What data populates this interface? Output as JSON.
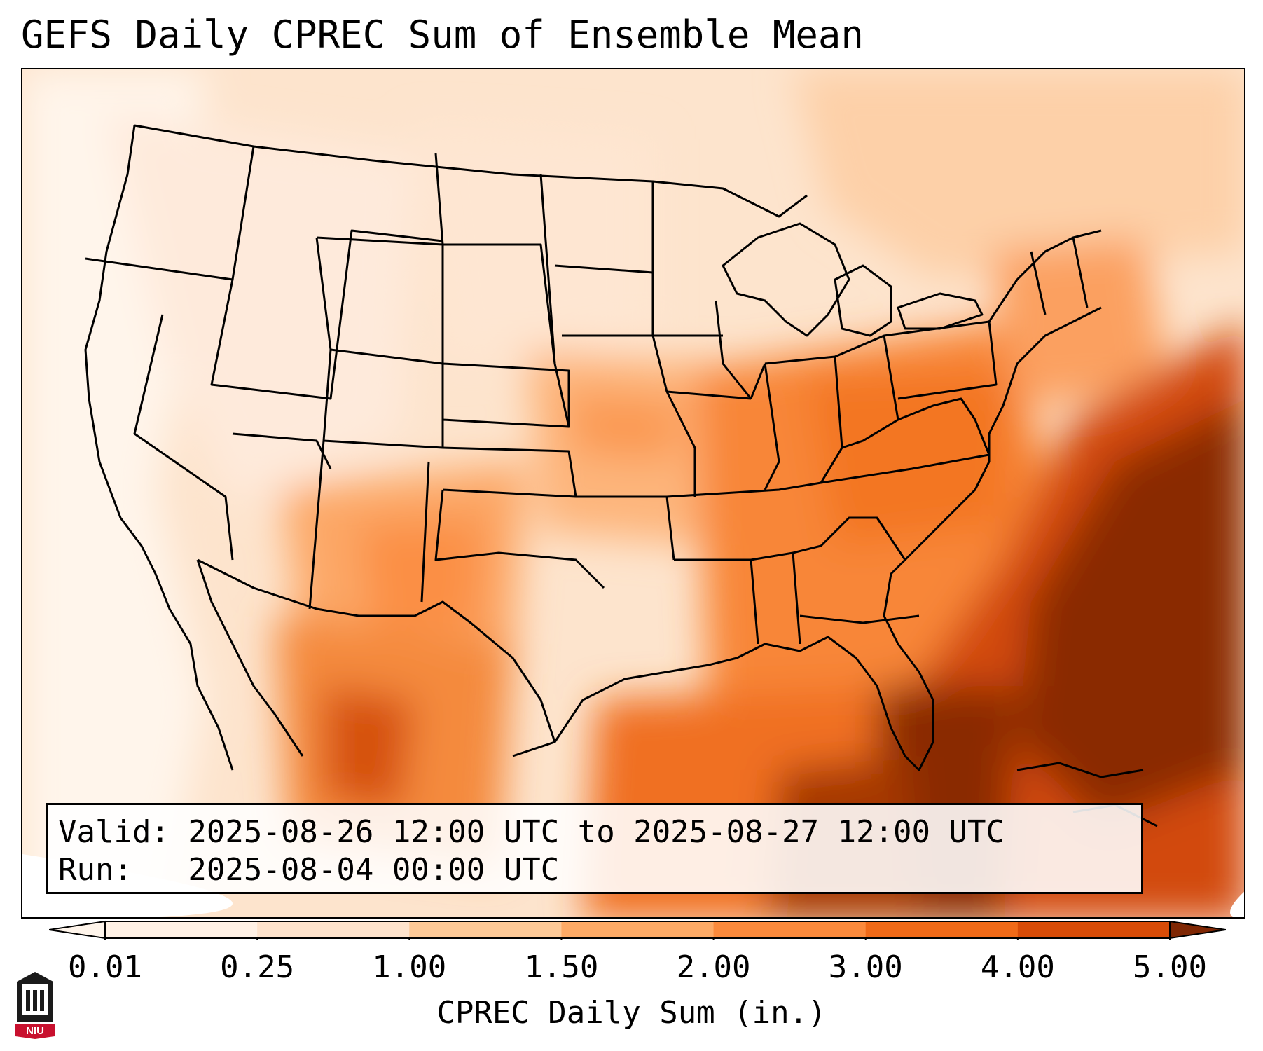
{
  "title": "GEFS Daily CPREC Sum of Ensemble Mean",
  "info": {
    "valid_line": "Valid: 2025-08-26 12:00 UTC to 2025-08-27 12:00 UTC",
    "run_line": "Run:   2025-08-04 00:00 UTC"
  },
  "colorbar": {
    "label": "CPREC Daily Sum (in.)",
    "ticks": [
      "0.01",
      "0.25",
      "1.00",
      "1.50",
      "2.00",
      "3.00",
      "4.00",
      "5.00"
    ],
    "colors": [
      "#fff1e5",
      "#fee3cc",
      "#fdc997",
      "#fdaa66",
      "#fb8a3c",
      "#f06a18",
      "#d84c08",
      "#8a2c04"
    ],
    "under_color": "#fff5eb",
    "over_color": "#7f2704"
  },
  "map": {
    "region": "Continental United States",
    "precip_field": [
      {
        "region": "Pacific Northwest",
        "inches": 0.1
      },
      {
        "region": "Northern Plains",
        "inches": 0.3
      },
      {
        "region": "Four Corners / New Mexico",
        "inches": 1.5
      },
      {
        "region": "Central Plains",
        "inches": 1.0
      },
      {
        "region": "Ohio Valley",
        "inches": 2.5
      },
      {
        "region": "Southeast",
        "inches": 2.5
      },
      {
        "region": "Gulf of Mexico",
        "inches": 3.0
      },
      {
        "region": "Florida / Gulf Stream",
        "inches": 5.0
      },
      {
        "region": "Western Atlantic",
        "inches": 5.0
      },
      {
        "region": "Sierra Madre Occidental",
        "inches": 3.5
      }
    ]
  },
  "logo": {
    "text": "NIU",
    "icon": "niu-tower-logo-icon"
  }
}
